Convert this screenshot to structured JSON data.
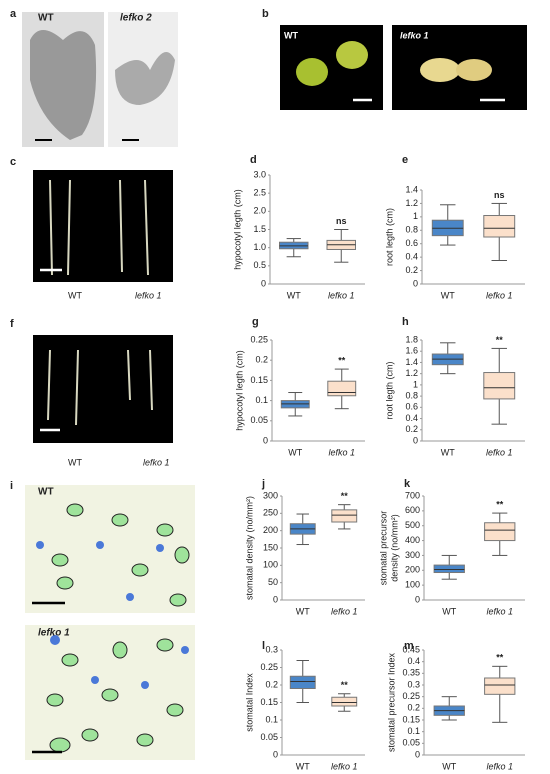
{
  "panels": {
    "a": {
      "label": "a",
      "captions": [
        "WT",
        "lefko 2"
      ]
    },
    "b": {
      "label": "b",
      "captions": [
        "WT",
        "lefko 1"
      ]
    },
    "c": {
      "label": "c",
      "captions": [
        "WT",
        "lefko 1"
      ]
    },
    "f": {
      "label": "f",
      "captions": [
        "WT",
        "lefko 1"
      ]
    },
    "i": {
      "label": "i",
      "captions": [
        "WT",
        "lefko 1"
      ]
    }
  },
  "chart_data": [
    {
      "type": "box",
      "label": "d",
      "ylabel": "hypocotyl legth (cm)",
      "annotation": "ns",
      "categories": [
        "WT",
        "lefko 1"
      ],
      "ylim": [
        0,
        3
      ],
      "yticks": [
        0,
        0.5,
        {
          "value": 1,
          "label": "1.0"
        },
        1.5,
        {
          "value": 2,
          "label": "2.0"
        },
        2.5,
        {
          "value": 3,
          "label": "3.0"
        }
      ],
      "boxes": [
        {
          "color": "#4a86c8",
          "min": 0.75,
          "q1": 0.97,
          "median": 1.05,
          "q3": 1.15,
          "max": 1.25
        },
        {
          "color": "#fbe0cb",
          "min": 0.6,
          "q1": 0.95,
          "median": 1.08,
          "q3": 1.2,
          "max": 1.5
        }
      ]
    },
    {
      "type": "box",
      "label": "e",
      "ylabel": "root legth (cm)",
      "annotation": "ns",
      "categories": [
        "WT",
        "lefko 1"
      ],
      "ylim": [
        0,
        1.4
      ],
      "yticks": [
        0,
        0.2,
        0.4,
        0.6,
        0.8,
        1,
        1.2,
        1.4
      ],
      "boxes": [
        {
          "color": "#4a86c8",
          "min": 0.58,
          "q1": 0.72,
          "median": 0.83,
          "q3": 0.95,
          "max": 1.18
        },
        {
          "color": "#fbe0cb",
          "min": 0.35,
          "q1": 0.7,
          "median": 0.83,
          "q3": 1.02,
          "max": 1.2
        }
      ]
    },
    {
      "type": "box",
      "label": "g",
      "ylabel": "hypocotyl legth (cm)",
      "annotation": "**",
      "categories": [
        "WT",
        "lefko 1"
      ],
      "ylim": [
        0,
        0.25
      ],
      "yticks": [
        0,
        0.05,
        0.1,
        0.15,
        0.2,
        0.25
      ],
      "boxes": [
        {
          "color": "#4a86c8",
          "min": 0.062,
          "q1": 0.082,
          "median": 0.092,
          "q3": 0.1,
          "max": 0.12
        },
        {
          "color": "#fbe0cb",
          "min": 0.08,
          "q1": 0.112,
          "median": 0.12,
          "q3": 0.148,
          "max": 0.178
        }
      ]
    },
    {
      "type": "box",
      "label": "h",
      "ylabel": "root legth (cm)",
      "annotation": "**",
      "categories": [
        "WT",
        "lefko 1"
      ],
      "ylim": [
        0,
        1.8
      ],
      "yticks": [
        0,
        0.2,
        0.4,
        0.6,
        0.8,
        1,
        1.2,
        1.4,
        1.6,
        1.8
      ],
      "boxes": [
        {
          "color": "#4a86c8",
          "min": 1.2,
          "q1": 1.36,
          "median": 1.46,
          "q3": 1.55,
          "max": 1.75
        },
        {
          "color": "#fbe0cb",
          "min": 0.3,
          "q1": 0.75,
          "median": 0.95,
          "q3": 1.22,
          "max": 1.65
        }
      ]
    },
    {
      "type": "box",
      "label": "j",
      "ylabel": "stomatal density (no/mm²)",
      "annotation": "**",
      "categories": [
        "WT",
        "lefko 1"
      ],
      "ylim": [
        0,
        300
      ],
      "yticks": [
        0,
        50,
        100,
        150,
        200,
        250,
        300
      ],
      "boxes": [
        {
          "color": "#4a86c8",
          "min": 160,
          "q1": 190,
          "median": 205,
          "q3": 220,
          "max": 248
        },
        {
          "color": "#fbe0cb",
          "min": 205,
          "q1": 225,
          "median": 245,
          "q3": 260,
          "max": 275
        }
      ]
    },
    {
      "type": "box",
      "label": "k",
      "ylabel": [
        "stomatal precursor",
        "density (no/mm²)"
      ],
      "annotation": "**",
      "categories": [
        "WT",
        "lefko 1"
      ],
      "ylim": [
        0,
        700
      ],
      "yticks": [
        0,
        100,
        200,
        300,
        400,
        500,
        600,
        700
      ],
      "boxes": [
        {
          "color": "#4a86c8",
          "min": 140,
          "q1": 185,
          "median": 205,
          "q3": 235,
          "max": 300
        },
        {
          "color": "#fbe0cb",
          "min": 300,
          "q1": 400,
          "median": 470,
          "q3": 520,
          "max": 585
        }
      ]
    },
    {
      "type": "box",
      "label": "l",
      "ylabel": "stomatal Index",
      "annotation": "**",
      "categories": [
        "WT",
        "lefko 1"
      ],
      "ylim": [
        0,
        0.3
      ],
      "yticks": [
        0,
        0.05,
        0.1,
        0.15,
        0.2,
        0.25,
        0.3
      ],
      "boxes": [
        {
          "color": "#4a86c8",
          "min": 0.15,
          "q1": 0.19,
          "median": 0.21,
          "q3": 0.225,
          "max": 0.27
        },
        {
          "color": "#fbe0cb",
          "min": 0.125,
          "q1": 0.14,
          "median": 0.15,
          "q3": 0.165,
          "max": 0.175
        }
      ]
    },
    {
      "type": "box",
      "label": "m",
      "ylabel": "stomatal precursor Index",
      "annotation": "**",
      "categories": [
        "WT",
        "lefko 1"
      ],
      "ylim": [
        0,
        0.45
      ],
      "yticks": [
        0,
        0.05,
        0.1,
        0.15,
        0.2,
        0.25,
        0.3,
        0.35,
        0.4,
        0.45
      ],
      "boxes": [
        {
          "color": "#4a86c8",
          "min": 0.15,
          "q1": 0.17,
          "median": 0.19,
          "q3": 0.21,
          "max": 0.25
        },
        {
          "color": "#fbe0cb",
          "min": 0.14,
          "q1": 0.26,
          "median": 0.3,
          "q3": 0.33,
          "max": 0.38
        }
      ]
    }
  ]
}
